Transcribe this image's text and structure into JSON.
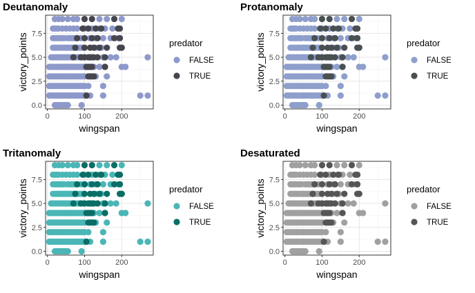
{
  "chart_data": [
    {
      "type": "scatter",
      "title": "Deutanomaly",
      "xlabel": "wingspan",
      "ylabel": "victory_points",
      "xlim": [
        -5,
        285
      ],
      "ylim": [
        -0.4,
        9.4
      ],
      "x_ticks": [
        0,
        100,
        200
      ],
      "y_ticks": [
        "0.0",
        "2.5",
        "5.0",
        "7.5"
      ],
      "y_tick_values": [
        0,
        2.5,
        5,
        7.5
      ],
      "grid": true,
      "legend_title": "predator",
      "legend_position": "right",
      "series": [
        {
          "name": "FALSE",
          "color": "#8e99cb"
        },
        {
          "name": "TRUE",
          "color": "#46464f"
        }
      ]
    },
    {
      "type": "scatter",
      "title": "Protanomaly",
      "xlabel": "wingspan",
      "ylabel": "victory_points",
      "xlim": [
        -5,
        285
      ],
      "ylim": [
        -0.4,
        9.4
      ],
      "x_ticks": [
        0,
        100,
        200
      ],
      "y_ticks": [
        "0.0",
        "2.5",
        "5.0",
        "7.5"
      ],
      "y_tick_values": [
        0,
        2.5,
        5,
        7.5
      ],
      "grid": true,
      "legend_title": "predator",
      "legend_position": "right",
      "series": [
        {
          "name": "FALSE",
          "color": "#8e9fcc"
        },
        {
          "name": "TRUE",
          "color": "#4a4f51"
        }
      ]
    },
    {
      "type": "scatter",
      "title": "Tritanomaly",
      "xlabel": "wingspan",
      "ylabel": "victory_points",
      "xlim": [
        -5,
        285
      ],
      "ylim": [
        -0.4,
        9.4
      ],
      "x_ticks": [
        0,
        100,
        200
      ],
      "y_ticks": [
        "0.0",
        "2.5",
        "5.0",
        "7.5"
      ],
      "y_tick_values": [
        0,
        2.5,
        5,
        7.5
      ],
      "grid": true,
      "legend_title": "predator",
      "legend_position": "right",
      "series": [
        {
          "name": "FALSE",
          "color": "#4bb6b6"
        },
        {
          "name": "TRUE",
          "color": "#0a6e66"
        }
      ]
    },
    {
      "type": "scatter",
      "title": "Desaturated",
      "xlabel": "wingspan",
      "ylabel": "victory_points",
      "xlim": [
        -5,
        285
      ],
      "ylim": [
        -0.4,
        9.4
      ],
      "x_ticks": [
        0,
        100,
        200
      ],
      "y_ticks": [
        "0.0",
        "2.5",
        "5.0",
        "7.5"
      ],
      "y_tick_values": [
        0,
        2.5,
        5,
        7.5
      ],
      "grid": true,
      "legend_title": "predator",
      "legend_position": "right",
      "series": [
        {
          "name": "FALSE",
          "color": "#a0a0a0"
        },
        {
          "name": "TRUE",
          "color": "#555555"
        }
      ]
    }
  ],
  "points": {
    "false": [
      [
        20,
        0
      ],
      [
        25,
        0
      ],
      [
        30,
        0
      ],
      [
        35,
        0
      ],
      [
        40,
        0
      ],
      [
        45,
        0
      ],
      [
        50,
        0
      ],
      [
        55,
        0
      ],
      [
        92,
        0
      ],
      [
        5,
        1
      ],
      [
        10,
        1
      ],
      [
        15,
        1
      ],
      [
        20,
        1
      ],
      [
        25,
        1
      ],
      [
        30,
        1
      ],
      [
        35,
        1
      ],
      [
        40,
        1
      ],
      [
        45,
        1
      ],
      [
        50,
        1
      ],
      [
        55,
        1
      ],
      [
        60,
        1
      ],
      [
        65,
        1
      ],
      [
        70,
        1
      ],
      [
        75,
        1
      ],
      [
        80,
        1
      ],
      [
        85,
        1
      ],
      [
        90,
        1
      ],
      [
        95,
        1
      ],
      [
        100,
        1
      ],
      [
        105,
        1
      ],
      [
        115,
        1
      ],
      [
        150,
        1
      ],
      [
        250,
        1
      ],
      [
        270,
        1
      ],
      [
        5,
        2
      ],
      [
        10,
        2
      ],
      [
        15,
        2
      ],
      [
        20,
        2
      ],
      [
        25,
        2
      ],
      [
        30,
        2
      ],
      [
        35,
        2
      ],
      [
        40,
        2
      ],
      [
        45,
        2
      ],
      [
        50,
        2
      ],
      [
        55,
        2
      ],
      [
        60,
        2
      ],
      [
        65,
        2
      ],
      [
        70,
        2
      ],
      [
        75,
        2
      ],
      [
        80,
        2
      ],
      [
        85,
        2
      ],
      [
        90,
        2
      ],
      [
        95,
        2
      ],
      [
        100,
        2
      ],
      [
        110,
        2
      ],
      [
        150,
        2
      ],
      [
        5,
        3
      ],
      [
        10,
        3
      ],
      [
        15,
        3
      ],
      [
        20,
        3
      ],
      [
        25,
        3
      ],
      [
        30,
        3
      ],
      [
        35,
        3
      ],
      [
        40,
        3
      ],
      [
        45,
        3
      ],
      [
        50,
        3
      ],
      [
        55,
        3
      ],
      [
        60,
        3
      ],
      [
        65,
        3
      ],
      [
        70,
        3
      ],
      [
        75,
        3
      ],
      [
        80,
        3
      ],
      [
        85,
        3
      ],
      [
        90,
        3
      ],
      [
        95,
        3
      ],
      [
        100,
        3
      ],
      [
        130,
        3
      ],
      [
        160,
        3
      ],
      [
        5,
        4
      ],
      [
        10,
        4
      ],
      [
        15,
        4
      ],
      [
        20,
        4
      ],
      [
        25,
        4
      ],
      [
        30,
        4
      ],
      [
        35,
        4
      ],
      [
        40,
        4
      ],
      [
        45,
        4
      ],
      [
        50,
        4
      ],
      [
        55,
        4
      ],
      [
        60,
        4
      ],
      [
        65,
        4
      ],
      [
        70,
        4
      ],
      [
        75,
        4
      ],
      [
        80,
        4
      ],
      [
        85,
        4
      ],
      [
        90,
        4
      ],
      [
        95,
        4
      ],
      [
        100,
        4
      ],
      [
        125,
        4
      ],
      [
        140,
        4
      ],
      [
        155,
        4
      ],
      [
        200,
        4
      ],
      [
        210,
        4
      ],
      [
        10,
        5
      ],
      [
        15,
        5
      ],
      [
        20,
        5
      ],
      [
        25,
        5
      ],
      [
        30,
        5
      ],
      [
        35,
        5
      ],
      [
        40,
        5
      ],
      [
        45,
        5
      ],
      [
        50,
        5
      ],
      [
        55,
        5
      ],
      [
        60,
        5
      ],
      [
        65,
        5
      ],
      [
        70,
        5
      ],
      [
        75,
        5
      ],
      [
        80,
        5
      ],
      [
        85,
        5
      ],
      [
        90,
        5
      ],
      [
        95,
        5
      ],
      [
        100,
        5
      ],
      [
        115,
        5
      ],
      [
        150,
        5
      ],
      [
        170,
        5
      ],
      [
        185,
        5
      ],
      [
        270,
        5
      ],
      [
        15,
        6
      ],
      [
        20,
        6
      ],
      [
        25,
        6
      ],
      [
        30,
        6
      ],
      [
        35,
        6
      ],
      [
        40,
        6
      ],
      [
        45,
        6
      ],
      [
        50,
        6
      ],
      [
        55,
        6
      ],
      [
        60,
        6
      ],
      [
        65,
        6
      ],
      [
        70,
        6
      ],
      [
        75,
        6
      ],
      [
        80,
        6
      ],
      [
        85,
        6
      ],
      [
        90,
        6
      ],
      [
        95,
        6
      ],
      [
        130,
        6
      ],
      [
        145,
        6
      ],
      [
        200,
        6
      ],
      [
        15,
        7
      ],
      [
        20,
        7
      ],
      [
        25,
        7
      ],
      [
        30,
        7
      ],
      [
        35,
        7
      ],
      [
        40,
        7
      ],
      [
        45,
        7
      ],
      [
        55,
        7
      ],
      [
        60,
        7
      ],
      [
        65,
        7
      ],
      [
        70,
        7
      ],
      [
        75,
        7
      ],
      [
        80,
        7
      ],
      [
        90,
        7
      ],
      [
        100,
        7
      ],
      [
        115,
        7
      ],
      [
        130,
        7
      ],
      [
        150,
        7
      ],
      [
        170,
        7
      ],
      [
        190,
        7
      ],
      [
        15,
        8
      ],
      [
        20,
        8
      ],
      [
        25,
        8
      ],
      [
        30,
        8
      ],
      [
        40,
        8
      ],
      [
        50,
        8
      ],
      [
        60,
        8
      ],
      [
        70,
        8
      ],
      [
        80,
        8
      ],
      [
        100,
        8
      ],
      [
        120,
        8
      ],
      [
        140,
        8
      ],
      [
        155,
        8
      ],
      [
        175,
        8
      ],
      [
        20,
        9
      ],
      [
        30,
        9
      ],
      [
        40,
        9
      ],
      [
        55,
        9
      ],
      [
        70,
        9
      ],
      [
        80,
        9
      ],
      [
        140,
        9
      ],
      [
        160,
        9
      ],
      [
        200,
        9
      ]
    ],
    "true": [
      [
        105,
        1
      ],
      [
        110,
        3
      ],
      [
        115,
        3
      ],
      [
        120,
        3
      ],
      [
        125,
        3
      ],
      [
        105,
        4
      ],
      [
        110,
        4
      ],
      [
        115,
        4
      ],
      [
        120,
        4
      ],
      [
        155,
        4
      ],
      [
        70,
        5
      ],
      [
        90,
        5
      ],
      [
        100,
        5
      ],
      [
        110,
        5
      ],
      [
        115,
        5
      ],
      [
        120,
        5
      ],
      [
        125,
        5
      ],
      [
        135,
        5
      ],
      [
        155,
        5
      ],
      [
        75,
        6
      ],
      [
        100,
        6
      ],
      [
        115,
        6
      ],
      [
        125,
        6
      ],
      [
        140,
        6
      ],
      [
        160,
        6
      ],
      [
        195,
        6
      ],
      [
        200,
        6
      ],
      [
        80,
        7
      ],
      [
        100,
        7
      ],
      [
        120,
        7
      ],
      [
        135,
        7
      ],
      [
        180,
        7
      ],
      [
        195,
        7
      ],
      [
        95,
        8
      ],
      [
        110,
        8
      ],
      [
        130,
        8
      ],
      [
        145,
        8
      ],
      [
        190,
        8
      ],
      [
        195,
        8
      ],
      [
        100,
        9
      ],
      [
        120,
        9
      ],
      [
        180,
        9
      ]
    ]
  }
}
